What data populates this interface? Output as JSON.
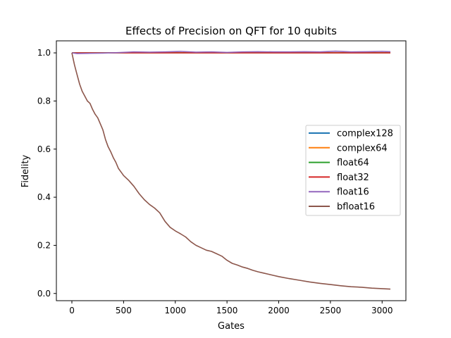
{
  "chart_data": {
    "type": "line",
    "title": "Effects of Precision on QFT for 10 qubits",
    "xlabel": "Gates",
    "ylabel": "Fidelity",
    "xlim": [
      -150,
      3230
    ],
    "ylim": [
      -0.03,
      1.05
    ],
    "xticks": [
      0,
      500,
      1000,
      1500,
      2000,
      2500,
      3000
    ],
    "xtick_labels": [
      "0",
      "500",
      "1000",
      "1500",
      "2000",
      "2500",
      "3000"
    ],
    "yticks": [
      0.0,
      0.2,
      0.4,
      0.6,
      0.8,
      1.0
    ],
    "ytick_labels": [
      "0.0",
      "0.2",
      "0.4",
      "0.6",
      "0.8",
      "1.0"
    ],
    "grid": false,
    "legend_position": "center-right",
    "series": [
      {
        "name": "complex128",
        "color": "#1f77b4",
        "x": [
          0,
          3080
        ],
        "y": [
          1.0,
          1.0
        ]
      },
      {
        "name": "complex64",
        "color": "#ff7f0e",
        "x": [
          0,
          3080
        ],
        "y": [
          1.0,
          1.0
        ]
      },
      {
        "name": "float64",
        "color": "#2ca02c",
        "x": [
          0,
          3080
        ],
        "y": [
          1.0,
          1.0
        ]
      },
      {
        "name": "float32",
        "color": "#d62728",
        "x": [
          0,
          3080
        ],
        "y": [
          1.0,
          1.0
        ]
      },
      {
        "name": "float16",
        "color": "#9467bd",
        "x": [
          0,
          50,
          150,
          300,
          450,
          600,
          750,
          900,
          1050,
          1200,
          1350,
          1500,
          1650,
          1800,
          1950,
          2100,
          2250,
          2400,
          2550,
          2700,
          2850,
          3000,
          3080
        ],
        "y": [
          1.0,
          0.997,
          0.998,
          0.999,
          1.001,
          1.004,
          1.003,
          1.004,
          1.006,
          1.003,
          1.004,
          1.002,
          1.004,
          1.005,
          1.004,
          1.004,
          1.005,
          1.004,
          1.007,
          1.004,
          1.005,
          1.006,
          1.005
        ]
      },
      {
        "name": "bfloat16",
        "color": "#8c564b",
        "x": [
          0,
          25,
          50,
          75,
          100,
          125,
          150,
          175,
          200,
          225,
          250,
          275,
          300,
          325,
          350,
          375,
          400,
          425,
          450,
          475,
          500,
          550,
          600,
          650,
          700,
          750,
          800,
          850,
          900,
          950,
          1000,
          1050,
          1100,
          1150,
          1200,
          1250,
          1300,
          1350,
          1400,
          1450,
          1500,
          1550,
          1600,
          1650,
          1700,
          1750,
          1800,
          1850,
          1900,
          1950,
          2000,
          2100,
          2200,
          2300,
          2400,
          2500,
          2600,
          2700,
          2800,
          2900,
          3000,
          3080
        ],
        "y": [
          1.0,
          0.95,
          0.91,
          0.87,
          0.84,
          0.82,
          0.8,
          0.79,
          0.765,
          0.745,
          0.73,
          0.705,
          0.68,
          0.64,
          0.61,
          0.59,
          0.565,
          0.545,
          0.52,
          0.505,
          0.49,
          0.47,
          0.445,
          0.415,
          0.39,
          0.37,
          0.355,
          0.335,
          0.3,
          0.275,
          0.26,
          0.248,
          0.235,
          0.215,
          0.2,
          0.19,
          0.18,
          0.175,
          0.165,
          0.155,
          0.138,
          0.125,
          0.118,
          0.11,
          0.104,
          0.096,
          0.09,
          0.085,
          0.08,
          0.075,
          0.07,
          0.062,
          0.055,
          0.048,
          0.042,
          0.037,
          0.032,
          0.028,
          0.026,
          0.022,
          0.02,
          0.018
        ]
      }
    ]
  }
}
